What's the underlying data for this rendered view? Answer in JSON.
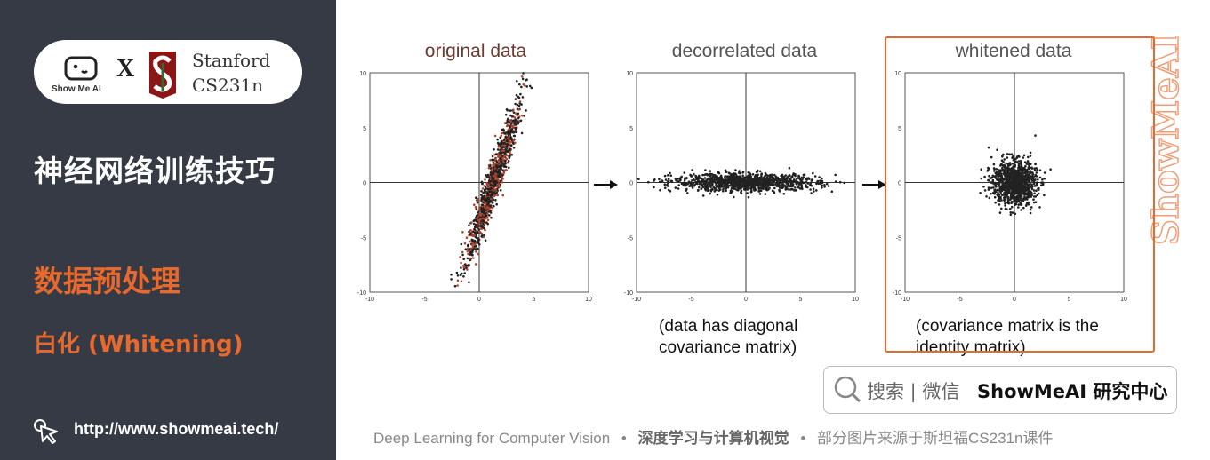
{
  "brand": {
    "robot_text": "Show Me AI",
    "x_sign": "X",
    "stanford_line1": "Stanford",
    "stanford_line2": "CS231n"
  },
  "sidebar": {
    "course_title": "神经网络训练技巧",
    "section_title": "数据预处理",
    "sub_title": "白化 (Whitening)",
    "url": "http://www.showmeai.tech/"
  },
  "plots": [
    {
      "title": "original data",
      "caption": ""
    },
    {
      "title": "decorrelated data",
      "caption_line1": "(data has diagonal",
      "caption_line2": "covariance matrix)"
    },
    {
      "title": "whitened data",
      "caption_line1": "(covariance matrix is the",
      "caption_line2": "identity matrix)"
    }
  ],
  "axis": {
    "ticks_y": [
      "10",
      "5",
      "0",
      "-5",
      "-10"
    ],
    "ticks_x": [
      "-10",
      "-5",
      "0",
      "5",
      "10"
    ],
    "range": [
      -10,
      10
    ]
  },
  "watermark": "ShowMeAI",
  "search": {
    "text": "搜索 | 微信",
    "brand": "ShowMeAI 研究中心"
  },
  "footer": {
    "part1": "Deep Learning for Computer Vision",
    "sep": "•",
    "part2": "深度学习与计算机视觉",
    "part3": "部分图片来源于斯坦福CS231n课件"
  },
  "colors": {
    "accent": "#e8692d",
    "sidebar": "#353a44"
  },
  "chart_data": [
    {
      "type": "scatter",
      "title": "original data",
      "xlim": [
        -10,
        10
      ],
      "ylim": [
        -10,
        10
      ],
      "description_values": {
        "x_std": 1.2,
        "y_std": 3.5,
        "correlation": 0.95
      }
    },
    {
      "type": "scatter",
      "title": "decorrelated data",
      "xlim": [
        -10,
        10
      ],
      "ylim": [
        -10,
        10
      ],
      "description_values": {
        "x_std": 3.3,
        "y_std": 0.4,
        "correlation": 0
      }
    },
    {
      "type": "scatter",
      "title": "whitened data",
      "xlim": [
        -10,
        10
      ],
      "ylim": [
        -10,
        10
      ],
      "description_values": {
        "x_std": 1.0,
        "y_std": 1.0,
        "correlation": 0
      }
    }
  ]
}
